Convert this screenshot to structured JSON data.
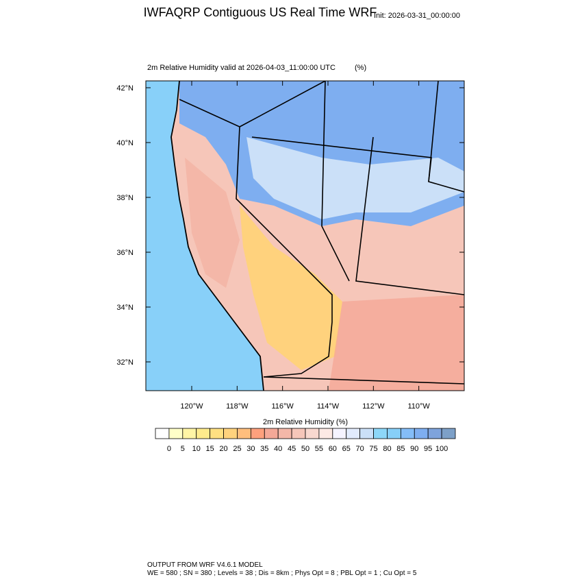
{
  "title": "IWFAQRP Contiguous US Real Time WRF",
  "init": "Init: 2026-03-31_00:00:00",
  "subtitle": "2m Relative Humidity valid at 2026-04-03_11:00:00 UTC",
  "units": "(%)",
  "map": {
    "lat_range": [
      30.95,
      42.25
    ],
    "lon_range": [
      -122.02,
      -108.0
    ],
    "lat_ticks": [
      {
        "value": 32,
        "label": "32°N"
      },
      {
        "value": 34,
        "label": "34°N"
      },
      {
        "value": 36,
        "label": "36°N"
      },
      {
        "value": 38,
        "label": "38°N"
      },
      {
        "value": 40,
        "label": "40°N"
      },
      {
        "value": 42,
        "label": "42°N"
      }
    ],
    "lon_ticks": [
      {
        "value": -120,
        "label": "120°W"
      },
      {
        "value": -118,
        "label": "118°W"
      },
      {
        "value": -116,
        "label": "116°W"
      },
      {
        "value": -114,
        "label": "114°W"
      },
      {
        "value": -112,
        "label": "112°W"
      },
      {
        "value": -110,
        "label": "110°W"
      }
    ]
  },
  "colorbar": {
    "title": "2m Relative Humidity  (%)",
    "levels": [
      0,
      5,
      10,
      15,
      20,
      25,
      30,
      35,
      40,
      45,
      50,
      55,
      60,
      65,
      70,
      75,
      80,
      85,
      90,
      95,
      100
    ],
    "colors": [
      "#ffffff",
      "#ffffc8",
      "#fff5a5",
      "#ffeb8c",
      "#ffe082",
      "#ffd27d",
      "#ffbe7d",
      "#ffa07d",
      "#f5a897",
      "#f4b7a8",
      "#f6c6b9",
      "#f9d8cf",
      "#fde9e4",
      "#f5f3ff",
      "#e2ebfd",
      "#cbe0f8",
      "#8dd7f8",
      "#87cff8",
      "#84bdf8",
      "#7eaef0",
      "#7ea3dc",
      "#7da0c8"
    ]
  },
  "footer": [
    "OUTPUT FROM WRF V4.6.1 MODEL",
    "WE = 580 ; SN = 380 ; Levels = 38 ; Dis = 8km ; Phys Opt = 8 ; PBL Opt = 1 ; Cu Opt = 5"
  ]
}
